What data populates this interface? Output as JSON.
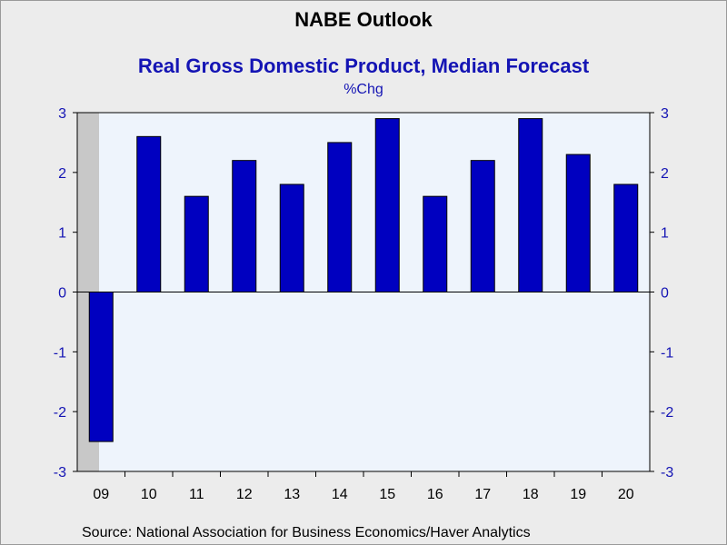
{
  "header": {
    "title": "NABE Outlook",
    "subtitle": "Real Gross Domestic Product, Median Forecast",
    "unit": "%Chg"
  },
  "footer": {
    "source": "Source:  National Association for Business Economics/Haver Analytics"
  },
  "colors": {
    "background": "#ececec",
    "plot_background": "#eef4fc",
    "bar_fill": "#0000c0",
    "bar_stroke": "#000000",
    "recession_shade": "#c8c8c8",
    "axis_text": "#1414b4"
  },
  "chart_data": {
    "type": "bar",
    "title": "NABE Outlook",
    "subtitle": "Real Gross Domestic Product, Median Forecast",
    "ylabel": "%Chg",
    "categories": [
      "09",
      "10",
      "11",
      "12",
      "13",
      "14",
      "15",
      "16",
      "17",
      "18",
      "19",
      "20"
    ],
    "values": [
      -2.5,
      2.6,
      1.6,
      2.2,
      1.8,
      2.5,
      2.9,
      1.6,
      2.2,
      2.9,
      2.3,
      1.8
    ],
    "ylim": [
      -3,
      3
    ],
    "yticks": [
      -3,
      -2,
      -1,
      0,
      1,
      2,
      3
    ],
    "ytick_labels": [
      "-3",
      "-2",
      "-1",
      "0",
      "1",
      "2",
      "3"
    ],
    "y_axis_sides": [
      "left",
      "right"
    ],
    "shaded_categories": [
      "09"
    ],
    "grid": false,
    "legend": "none"
  }
}
